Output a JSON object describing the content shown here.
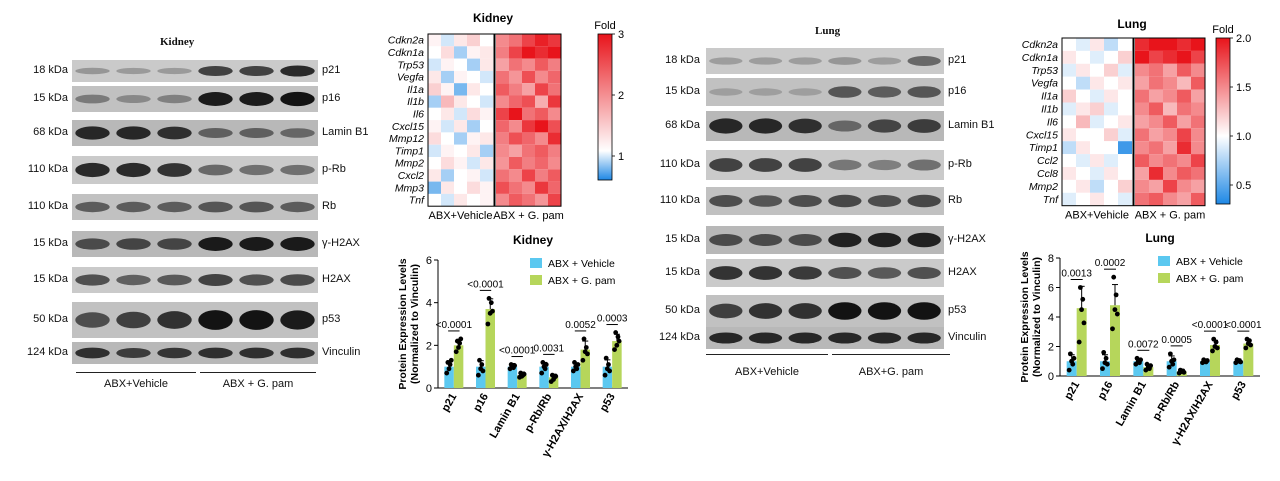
{
  "kidney": {
    "blot": {
      "title": "Kidney",
      "rows": [
        {
          "kda": "18 kDa",
          "protein": "p21"
        },
        {
          "kda": "15 kDa",
          "protein": "p16"
        },
        {
          "kda": "68 kDa",
          "protein": "Lamin B1"
        },
        {
          "kda": "110 kDa",
          "protein": "p-Rb"
        },
        {
          "kda": "110 kDa",
          "protein": "Rb"
        },
        {
          "kda": "15 kDa",
          "protein": "γ-H2AX"
        },
        {
          "kda": "15 kDa",
          "protein": "H2AX"
        },
        {
          "kda": "50 kDa",
          "protein": "p53"
        },
        {
          "kda": "124 kDa",
          "protein": "Vinculin"
        }
      ],
      "group_left": "ABX+Vehicle",
      "group_right": "ABX + G. pam"
    },
    "heatmap": {
      "title": "Kidney",
      "genes": [
        "Cdkn2a",
        "Cdkn1a",
        "Trp53",
        "Vegfa",
        "Il1a",
        "Il1b",
        "Il6",
        "Cxcl15",
        "Mmp12",
        "Timp1",
        "Mmp2",
        "Cxcl2",
        "Mmp3",
        "Tnf"
      ],
      "group_left": "ABX+Vehicle",
      "group_right": "ABX + G. pam",
      "scale_title": "Fold",
      "scale_ticks": [
        "3",
        "2",
        "1"
      ]
    },
    "bar": {
      "title": "Kidney",
      "ylabel_line1": "Protein Expression Levels",
      "ylabel_line2": "(Normalized to Vinculin)",
      "yticks": [
        "0",
        "2",
        "4",
        "6"
      ],
      "legend": [
        "ABX + Vehicle",
        "ABX + G. pam"
      ],
      "pvalues": [
        "<0.0001",
        "<0.0001",
        "<0.0001",
        "0.0031",
        "0.0052",
        "0.0003"
      ]
    }
  },
  "lung": {
    "blot": {
      "title": "Lung",
      "rows": [
        {
          "kda": "18 kDa",
          "protein": "p21"
        },
        {
          "kda": "15 kDa",
          "protein": "p16"
        },
        {
          "kda": "68 kDa",
          "protein": "Lamin B1"
        },
        {
          "kda": "110 kDa",
          "protein": "p-Rb"
        },
        {
          "kda": "110 kDa",
          "protein": "Rb"
        },
        {
          "kda": "15 kDa",
          "protein": "γ-H2AX"
        },
        {
          "kda": "15 kDa",
          "protein": "H2AX"
        },
        {
          "kda": "50 kDa",
          "protein": "p53"
        },
        {
          "kda": "124 kDa",
          "protein": "Vinculin"
        }
      ],
      "group_left": "ABX+Vehicle",
      "group_right": "ABX+G. pam"
    },
    "heatmap": {
      "title": "Lung",
      "genes": [
        "Cdkn2a",
        "Cdkn1a",
        "Trp53",
        "Vegfa",
        "Il1a",
        "Il1b",
        "Il6",
        "Cxcl15",
        "Timp1",
        "Ccl2",
        "Ccl8",
        "Mmp2",
        "Tnf"
      ],
      "group_left": "ABX+Vehicle",
      "group_right": "ABX + G. pam",
      "scale_title": "Fold",
      "scale_ticks": [
        "2.0",
        "1.5",
        "1.0",
        "0.5"
      ]
    },
    "bar": {
      "title": "Lung",
      "ylabel_line1": "Protein Expression Levels",
      "ylabel_line2": "(Normalized to Vinculin)",
      "yticks": [
        "0",
        "2",
        "4",
        "6",
        "8"
      ],
      "legend": [
        "ABX + Vehicle",
        "ABX + G. pam"
      ],
      "pvalues": [
        "0.0013",
        "0.0002",
        "0.0072",
        "0.0005",
        "<0.0001",
        "<0.0001"
      ]
    }
  },
  "colors": {
    "vehicle": "#5bc8f0",
    "gpam": "#b6d65b",
    "heat_high": "#e8141b",
    "heat_mid": "#ffffff",
    "heat_low": "#1e88e5"
  },
  "chart_data": [
    {
      "type": "heatmap",
      "title": "Kidney",
      "rows": [
        "Cdkn2a",
        "Cdkn1a",
        "Trp53",
        "Vegfa",
        "Il1a",
        "Il1b",
        "Il6",
        "Cxcl15",
        "Mmp12",
        "Timp1",
        "Mmp2",
        "Cxcl2",
        "Mmp3",
        "Tnf"
      ],
      "groups": [
        "ABX+Vehicle",
        "ABX + G. pam"
      ],
      "columns_per_group": 5,
      "colorbar": {
        "label": "Fold",
        "range": [
          0.5,
          3
        ]
      },
      "values": [
        [
          1.1,
          0.9,
          1.2,
          1.4,
          1.0,
          2.0,
          2.2,
          2.6,
          2.9,
          2.7
        ],
        [
          1.0,
          1.3,
          0.8,
          1.1,
          1.2,
          2.1,
          2.6,
          3.0,
          2.8,
          3.0
        ],
        [
          0.9,
          1.1,
          1.0,
          0.8,
          1.2,
          1.8,
          2.2,
          2.0,
          2.4,
          2.1
        ],
        [
          1.2,
          0.8,
          1.1,
          1.0,
          0.9,
          2.2,
          1.9,
          2.5,
          2.0,
          2.3
        ],
        [
          1.4,
          1.1,
          0.7,
          1.2,
          1.0,
          2.4,
          2.1,
          1.8,
          2.6,
          2.2
        ],
        [
          0.8,
          1.6,
          1.2,
          1.0,
          0.9,
          2.0,
          2.3,
          2.5,
          1.7,
          2.7
        ],
        [
          1.0,
          1.2,
          0.9,
          1.3,
          1.1,
          2.6,
          3.0,
          2.2,
          2.4,
          2.0
        ],
        [
          1.1,
          0.9,
          1.2,
          0.8,
          1.0,
          2.3,
          2.0,
          2.7,
          3.0,
          2.5
        ],
        [
          1.3,
          1.0,
          0.8,
          1.1,
          1.2,
          2.1,
          2.5,
          2.3,
          2.0,
          2.8
        ],
        [
          0.9,
          1.1,
          1.0,
          1.2,
          0.8,
          2.0,
          1.8,
          2.2,
          2.4,
          2.1
        ],
        [
          1.0,
          1.3,
          1.1,
          0.9,
          1.2,
          1.9,
          2.4,
          2.1,
          2.3,
          2.0
        ],
        [
          1.2,
          0.8,
          1.0,
          1.1,
          0.9,
          2.2,
          2.0,
          2.6,
          2.1,
          2.4
        ],
        [
          0.7,
          1.2,
          1.0,
          1.3,
          1.1,
          2.5,
          2.2,
          2.0,
          2.7,
          2.3
        ],
        [
          1.0,
          0.9,
          1.2,
          1.0,
          1.1,
          2.0,
          2.4,
          2.2,
          1.9,
          2.6
        ]
      ]
    },
    {
      "type": "bar",
      "title": "Kidney",
      "categories": [
        "p21",
        "p16",
        "Lamin B1",
        "p-Rb/Rb",
        "γ-H2AX/H2AX",
        "p53"
      ],
      "series": [
        {
          "name": "ABX + Vehicle",
          "values": [
            1.0,
            1.0,
            1.0,
            1.0,
            1.0,
            1.0
          ]
        },
        {
          "name": "ABX + G. pam",
          "values": [
            2.0,
            3.7,
            0.6,
            0.5,
            1.8,
            2.2
          ]
        }
      ],
      "ylabel": "Protein Expression Levels (Normalized to Vinculin)",
      "ylim": [
        0,
        6
      ],
      "legend": "top-right"
    },
    {
      "type": "heatmap",
      "title": "Lung",
      "rows": [
        "Cdkn2a",
        "Cdkn1a",
        "Trp53",
        "Vegfa",
        "Il1a",
        "Il1b",
        "Il6",
        "Cxcl15",
        "Timp1",
        "Ccl2",
        "Ccl8",
        "Mmp2",
        "Tnf"
      ],
      "groups": [
        "ABX+Vehicle",
        "ABX + G. pam"
      ],
      "columns_per_group": 5,
      "colorbar": {
        "label": "Fold",
        "range": [
          0.3,
          2.0
        ]
      },
      "values": [
        [
          1.0,
          0.9,
          1.1,
          0.8,
          1.0,
          1.9,
          2.0,
          2.0,
          1.9,
          2.0
        ],
        [
          1.1,
          1.0,
          0.9,
          1.0,
          1.2,
          2.0,
          1.8,
          1.9,
          2.0,
          1.8
        ],
        [
          0.9,
          1.1,
          1.0,
          1.2,
          0.9,
          1.5,
          1.6,
          1.4,
          1.7,
          1.5
        ],
        [
          1.0,
          0.8,
          1.1,
          1.0,
          1.1,
          1.4,
          1.6,
          1.5,
          1.3,
          1.7
        ],
        [
          1.2,
          1.0,
          0.9,
          1.1,
          1.0,
          1.6,
          1.4,
          1.5,
          1.7,
          1.4
        ],
        [
          0.9,
          1.1,
          1.2,
          0.9,
          1.0,
          1.5,
          1.7,
          1.3,
          1.6,
          1.5
        ],
        [
          1.0,
          1.3,
          0.9,
          1.0,
          1.1,
          1.4,
          1.5,
          1.7,
          1.4,
          1.6
        ],
        [
          1.1,
          1.0,
          1.0,
          1.2,
          0.9,
          1.6,
          1.4,
          1.5,
          1.8,
          1.5
        ],
        [
          0.8,
          1.1,
          1.0,
          1.0,
          0.4,
          1.5,
          1.6,
          1.4,
          1.9,
          1.5
        ],
        [
          1.0,
          0.9,
          1.1,
          0.9,
          1.0,
          1.7,
          1.5,
          1.6,
          1.5,
          1.8
        ],
        [
          1.1,
          1.0,
          0.9,
          1.1,
          1.0,
          1.4,
          1.9,
          1.5,
          1.7,
          1.6
        ],
        [
          1.0,
          1.1,
          0.8,
          1.0,
          1.2,
          1.5,
          1.4,
          1.8,
          1.5,
          1.4
        ],
        [
          0.9,
          1.0,
          1.1,
          1.0,
          0.9,
          1.6,
          1.7,
          1.5,
          1.4,
          1.7
        ]
      ]
    },
    {
      "type": "bar",
      "title": "Lung",
      "categories": [
        "p21",
        "p16",
        "Lamin B1",
        "p-Rb/Rb",
        "γ-H2AX/H2AX",
        "p53"
      ],
      "series": [
        {
          "name": "ABX + Vehicle",
          "values": [
            1.0,
            1.0,
            1.0,
            1.0,
            1.0,
            1.0
          ]
        },
        {
          "name": "ABX + G. pam",
          "values": [
            4.6,
            4.8,
            0.6,
            0.3,
            2.1,
            2.2
          ]
        }
      ],
      "ylabel": "Protein Expression Levels (Normalized to Vinculin)",
      "ylim": [
        0,
        8
      ],
      "legend": "top-right"
    }
  ]
}
